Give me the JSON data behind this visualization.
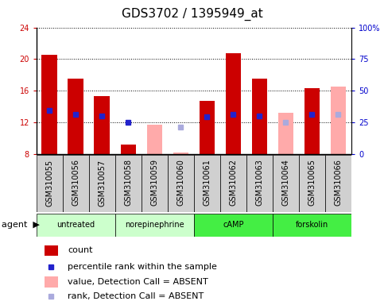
{
  "title": "GDS3702 / 1395949_at",
  "samples": [
    "GSM310055",
    "GSM310056",
    "GSM310057",
    "GSM310058",
    "GSM310059",
    "GSM310060",
    "GSM310061",
    "GSM310062",
    "GSM310063",
    "GSM310064",
    "GSM310065",
    "GSM310066"
  ],
  "agents": [
    {
      "label": "untreated",
      "start": 0,
      "end": 2,
      "color": "#ccffcc"
    },
    {
      "label": "norepinephrine",
      "start": 3,
      "end": 5,
      "color": "#ccffcc"
    },
    {
      "label": "cAMP",
      "start": 6,
      "end": 8,
      "color": "#44ee44"
    },
    {
      "label": "forskolin",
      "start": 9,
      "end": 11,
      "color": "#44ee44"
    }
  ],
  "red_bars": [
    20.5,
    17.5,
    15.3,
    9.2,
    null,
    null,
    14.7,
    20.7,
    17.5,
    null,
    16.3,
    null
  ],
  "blue_sq": [
    13.5,
    13.0,
    12.8,
    12.0,
    null,
    null,
    12.7,
    13.0,
    12.8,
    null,
    13.0,
    null
  ],
  "pink_bars": [
    null,
    null,
    null,
    null,
    11.7,
    8.2,
    null,
    null,
    null,
    13.2,
    null,
    16.5
  ],
  "lblue_sq": [
    null,
    null,
    null,
    null,
    null,
    11.4,
    null,
    null,
    null,
    12.0,
    null,
    13.0
  ],
  "ylim": [
    8,
    24
  ],
  "yticks": [
    8,
    12,
    16,
    20,
    24
  ],
  "bar_width": 0.6,
  "red_color": "#cc0000",
  "blue_color": "#2222cc",
  "pink_color": "#ffaaaa",
  "lblue_color": "#aaaadd",
  "title_fontsize": 11,
  "tick_fontsize": 7,
  "label_fontsize": 8,
  "legend_fontsize": 8,
  "ytick_color": "#cc0000",
  "y2tick_color": "#0000cc",
  "gray_bg": "#d0d0d0",
  "plot_bg": "#ffffff"
}
